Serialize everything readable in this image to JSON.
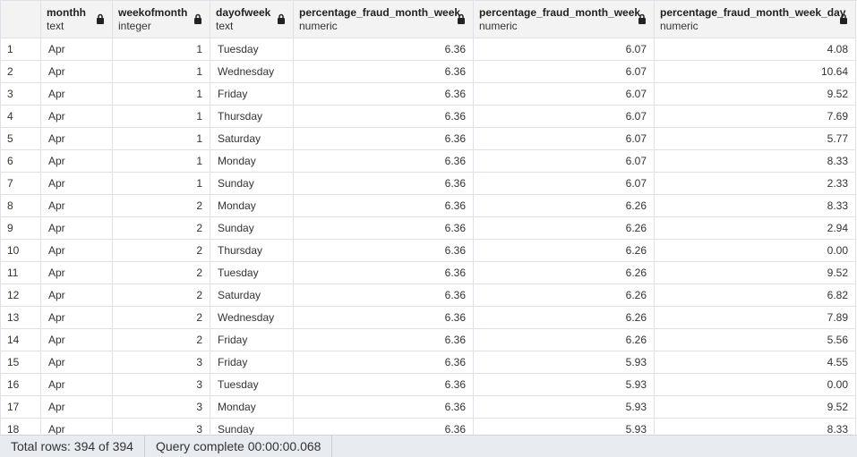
{
  "columns": [
    {
      "name": "monthh",
      "type": "text",
      "align": "left"
    },
    {
      "name": "weekofmonth",
      "type": "integer",
      "align": "right"
    },
    {
      "name": "dayofweek",
      "type": "text",
      "align": "left"
    },
    {
      "name": "percentage_fraud_month_week",
      "type": "numeric",
      "align": "right"
    },
    {
      "name": "percentage_fraud_month_week",
      "type": "numeric",
      "align": "right"
    },
    {
      "name": "percentage_fraud_month_week_day",
      "type": "numeric",
      "align": "right"
    }
  ],
  "rows": [
    {
      "n": "1",
      "cells": [
        "Apr",
        "1",
        "Tuesday",
        "6.36",
        "6.07",
        "4.08"
      ]
    },
    {
      "n": "2",
      "cells": [
        "Apr",
        "1",
        "Wednesday",
        "6.36",
        "6.07",
        "10.64"
      ]
    },
    {
      "n": "3",
      "cells": [
        "Apr",
        "1",
        "Friday",
        "6.36",
        "6.07",
        "9.52"
      ]
    },
    {
      "n": "4",
      "cells": [
        "Apr",
        "1",
        "Thursday",
        "6.36",
        "6.07",
        "7.69"
      ]
    },
    {
      "n": "5",
      "cells": [
        "Apr",
        "1",
        "Saturday",
        "6.36",
        "6.07",
        "5.77"
      ]
    },
    {
      "n": "6",
      "cells": [
        "Apr",
        "1",
        "Monday",
        "6.36",
        "6.07",
        "8.33"
      ]
    },
    {
      "n": "7",
      "cells": [
        "Apr",
        "1",
        "Sunday",
        "6.36",
        "6.07",
        "2.33"
      ]
    },
    {
      "n": "8",
      "cells": [
        "Apr",
        "2",
        "Monday",
        "6.36",
        "6.26",
        "8.33"
      ]
    },
    {
      "n": "9",
      "cells": [
        "Apr",
        "2",
        "Sunday",
        "6.36",
        "6.26",
        "2.94"
      ]
    },
    {
      "n": "10",
      "cells": [
        "Apr",
        "2",
        "Thursday",
        "6.36",
        "6.26",
        "0.00"
      ]
    },
    {
      "n": "11",
      "cells": [
        "Apr",
        "2",
        "Tuesday",
        "6.36",
        "6.26",
        "9.52"
      ]
    },
    {
      "n": "12",
      "cells": [
        "Apr",
        "2",
        "Saturday",
        "6.36",
        "6.26",
        "6.82"
      ]
    },
    {
      "n": "13",
      "cells": [
        "Apr",
        "2",
        "Wednesday",
        "6.36",
        "6.26",
        "7.89"
      ]
    },
    {
      "n": "14",
      "cells": [
        "Apr",
        "2",
        "Friday",
        "6.36",
        "6.26",
        "5.56"
      ]
    },
    {
      "n": "15",
      "cells": [
        "Apr",
        "3",
        "Friday",
        "6.36",
        "5.93",
        "4.55"
      ]
    },
    {
      "n": "16",
      "cells": [
        "Apr",
        "3",
        "Tuesday",
        "6.36",
        "5.93",
        "0.00"
      ]
    },
    {
      "n": "17",
      "cells": [
        "Apr",
        "3",
        "Monday",
        "6.36",
        "5.93",
        "9.52"
      ]
    },
    {
      "n": "18",
      "cells": [
        "Apr",
        "3",
        "Sunday",
        "6.36",
        "5.93",
        "8.33"
      ]
    }
  ],
  "status": {
    "total_rows": "Total rows: 394 of 394",
    "query": "Query complete 00:00:00.068"
  },
  "icons": {
    "lock": "lock-icon"
  },
  "colors": {
    "header_bg": "#f3f3f3",
    "grid_line": "#dee2e6",
    "status_bg": "#e8ebef"
  }
}
